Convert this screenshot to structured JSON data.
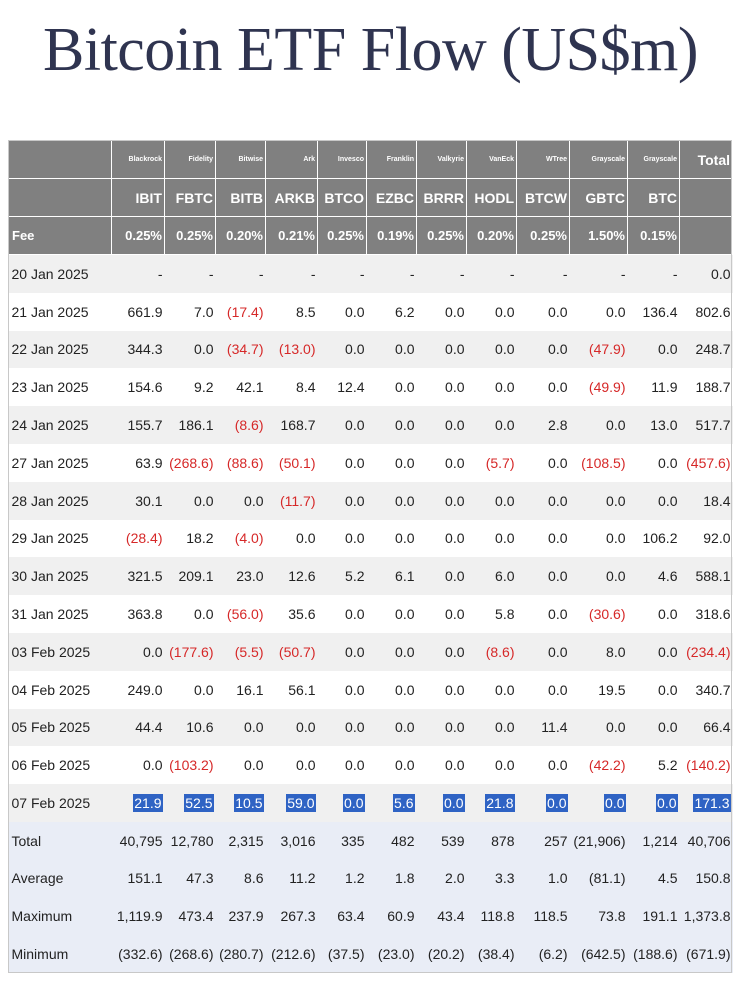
{
  "title": "Bitcoin ETF Flow (US$m)",
  "header": {
    "issuers": [
      "Blackrock",
      "Fidelity",
      "Bitwise",
      "Ark",
      "Invesco",
      "Franklin",
      "Valkyrie",
      "VanEck",
      "WTree",
      "Grayscale",
      "Grayscale"
    ],
    "total_label": "Total",
    "tickers": [
      "IBIT",
      "FBTC",
      "BITB",
      "ARKB",
      "BTCO",
      "EZBC",
      "BRRR",
      "HODL",
      "BTCW",
      "GBTC",
      "BTC"
    ],
    "fee_label": "Fee",
    "fees": [
      "0.25%",
      "0.25%",
      "0.20%",
      "0.21%",
      "0.25%",
      "0.19%",
      "0.25%",
      "0.20%",
      "0.25%",
      "1.50%",
      "0.15%"
    ]
  },
  "rows": [
    {
      "date": "20 Jan 2025",
      "cells": [
        "-",
        "-",
        "-",
        "-",
        "-",
        "-",
        "-",
        "-",
        "-",
        "-",
        "-",
        "0.0"
      ]
    },
    {
      "date": "21 Jan 2025",
      "cells": [
        "661.9",
        "7.0",
        "(17.4)",
        "8.5",
        "0.0",
        "6.2",
        "0.0",
        "0.0",
        "0.0",
        "0.0",
        "136.4",
        "802.6"
      ]
    },
    {
      "date": "22 Jan 2025",
      "cells": [
        "344.3",
        "0.0",
        "(34.7)",
        "(13.0)",
        "0.0",
        "0.0",
        "0.0",
        "0.0",
        "0.0",
        "(47.9)",
        "0.0",
        "248.7"
      ]
    },
    {
      "date": "23 Jan 2025",
      "cells": [
        "154.6",
        "9.2",
        "42.1",
        "8.4",
        "12.4",
        "0.0",
        "0.0",
        "0.0",
        "0.0",
        "(49.9)",
        "11.9",
        "188.7"
      ]
    },
    {
      "date": "24 Jan 2025",
      "cells": [
        "155.7",
        "186.1",
        "(8.6)",
        "168.7",
        "0.0",
        "0.0",
        "0.0",
        "0.0",
        "2.8",
        "0.0",
        "13.0",
        "517.7"
      ]
    },
    {
      "date": "27 Jan 2025",
      "cells": [
        "63.9",
        "(268.6)",
        "(88.6)",
        "(50.1)",
        "0.0",
        "0.0",
        "0.0",
        "(5.7)",
        "0.0",
        "(108.5)",
        "0.0",
        "(457.6)"
      ]
    },
    {
      "date": "28 Jan 2025",
      "cells": [
        "30.1",
        "0.0",
        "0.0",
        "(11.7)",
        "0.0",
        "0.0",
        "0.0",
        "0.0",
        "0.0",
        "0.0",
        "0.0",
        "18.4"
      ]
    },
    {
      "date": "29 Jan 2025",
      "cells": [
        "(28.4)",
        "18.2",
        "(4.0)",
        "0.0",
        "0.0",
        "0.0",
        "0.0",
        "0.0",
        "0.0",
        "0.0",
        "106.2",
        "92.0"
      ]
    },
    {
      "date": "30 Jan 2025",
      "cells": [
        "321.5",
        "209.1",
        "23.0",
        "12.6",
        "5.2",
        "6.1",
        "0.0",
        "6.0",
        "0.0",
        "0.0",
        "4.6",
        "588.1"
      ]
    },
    {
      "date": "31 Jan 2025",
      "cells": [
        "363.8",
        "0.0",
        "(56.0)",
        "35.6",
        "0.0",
        "0.0",
        "0.0",
        "5.8",
        "0.0",
        "(30.6)",
        "0.0",
        "318.6"
      ]
    },
    {
      "date": "03 Feb 2025",
      "cells": [
        "0.0",
        "(177.6)",
        "(5.5)",
        "(50.7)",
        "0.0",
        "0.0",
        "0.0",
        "(8.6)",
        "0.0",
        "8.0",
        "0.0",
        "(234.4)"
      ]
    },
    {
      "date": "04 Feb 2025",
      "cells": [
        "249.0",
        "0.0",
        "16.1",
        "56.1",
        "0.0",
        "0.0",
        "0.0",
        "0.0",
        "0.0",
        "19.5",
        "0.0",
        "340.7"
      ]
    },
    {
      "date": "05 Feb 2025",
      "cells": [
        "44.4",
        "10.6",
        "0.0",
        "0.0",
        "0.0",
        "0.0",
        "0.0",
        "0.0",
        "11.4",
        "0.0",
        "0.0",
        "66.4"
      ]
    },
    {
      "date": "06 Feb 2025",
      "cells": [
        "0.0",
        "(103.2)",
        "0.0",
        "0.0",
        "0.0",
        "0.0",
        "0.0",
        "0.0",
        "0.0",
        "(42.2)",
        "5.2",
        "(140.2)"
      ]
    },
    {
      "date": "07 Feb 2025",
      "highlight": true,
      "cells": [
        "21.9",
        "52.5",
        "10.5",
        "59.0",
        "0.0",
        "5.6",
        "0.0",
        "21.8",
        "0.0",
        "0.0",
        "0.0",
        "171.3"
      ]
    }
  ],
  "summary": [
    {
      "label": "Total",
      "cells": [
        "40,795",
        "12,780",
        "2,315",
        "3,016",
        "335",
        "482",
        "539",
        "878",
        "257",
        "(21,906)",
        "1,214",
        "40,706"
      ]
    },
    {
      "label": "Average",
      "cells": [
        "151.1",
        "47.3",
        "8.6",
        "11.2",
        "1.2",
        "1.8",
        "2.0",
        "3.3",
        "1.0",
        "(81.1)",
        "4.5",
        "150.8"
      ]
    },
    {
      "label": "Maximum",
      "cells": [
        "1,119.9",
        "473.4",
        "237.9",
        "267.3",
        "63.4",
        "60.9",
        "43.4",
        "118.8",
        "118.5",
        "73.8",
        "191.1",
        "1,373.8"
      ]
    },
    {
      "label": "Minimum",
      "cells": [
        "(332.6)",
        "(268.6)",
        "(280.7)",
        "(212.6)",
        "(37.5)",
        "(23.0)",
        "(20.2)",
        "(38.4)",
        "(6.2)",
        "(642.5)",
        "(188.6)",
        "(671.9)"
      ]
    }
  ],
  "colors": {
    "header_bg": "#808080",
    "negative": "#d62828",
    "highlight": "#2f63c4",
    "summary_bg": "#e9edf6",
    "alt_row_bg": "#f0f0f0",
    "title": "#2f3450"
  }
}
